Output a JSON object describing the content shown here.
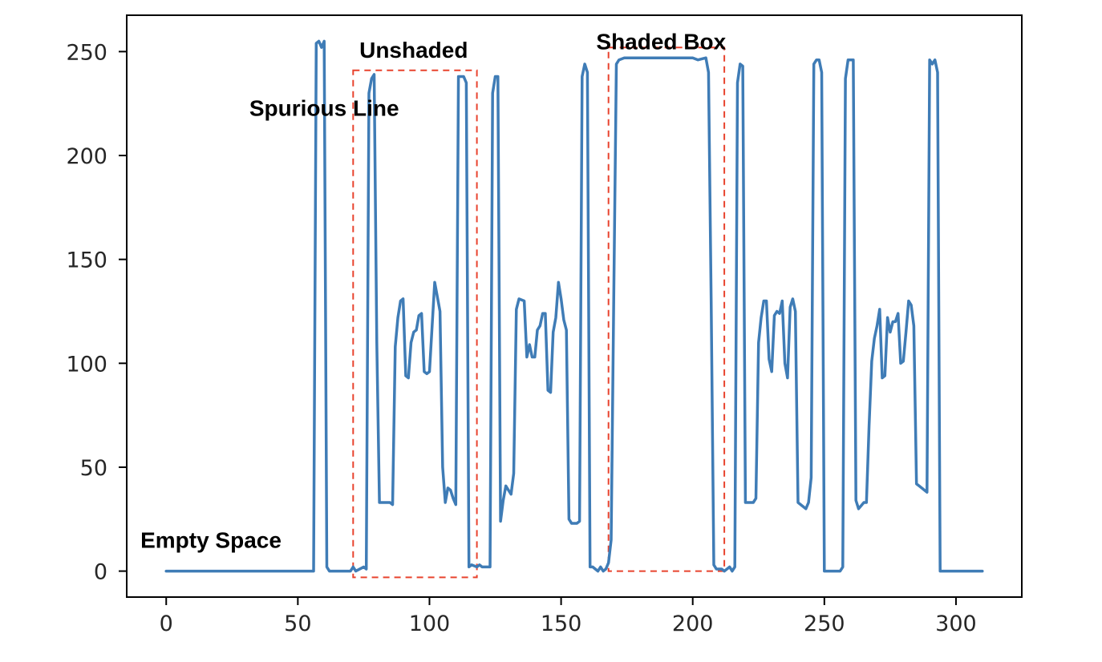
{
  "chart_data": {
    "type": "line",
    "title": "",
    "xlabel": "",
    "ylabel": "",
    "xlim": [
      -15,
      325
    ],
    "ylim": [
      -12.5,
      267.5
    ],
    "grid": false,
    "legend": "none",
    "x_ticks": [
      0,
      50,
      100,
      150,
      200,
      250,
      300
    ],
    "y_ticks": [
      0,
      50,
      100,
      150,
      200,
      250
    ],
    "line_color": "#3F7CB6",
    "box_color": "#E8432E",
    "series": [
      {
        "points": [
          [
            0,
            0
          ],
          [
            54,
            0
          ],
          [
            56,
            0
          ],
          [
            57,
            254
          ],
          [
            58,
            255
          ],
          [
            59,
            252
          ],
          [
            60,
            255
          ],
          [
            61,
            2
          ],
          [
            62,
            0
          ],
          [
            70,
            0
          ],
          [
            71,
            2
          ],
          [
            72,
            0
          ],
          [
            75,
            2
          ],
          [
            76,
            1
          ],
          [
            77,
            230
          ],
          [
            78,
            237
          ],
          [
            79,
            239
          ],
          [
            80,
            110
          ],
          [
            81,
            33
          ],
          [
            85,
            33
          ],
          [
            86,
            32
          ],
          [
            87,
            108
          ],
          [
            88,
            122
          ],
          [
            89,
            130
          ],
          [
            90,
            131
          ],
          [
            91,
            94
          ],
          [
            92,
            93
          ],
          [
            93,
            110
          ],
          [
            94,
            115
          ],
          [
            95,
            116
          ],
          [
            96,
            123
          ],
          [
            97,
            124
          ],
          [
            98,
            96
          ],
          [
            99,
            95
          ],
          [
            100,
            96
          ],
          [
            101,
            118
          ],
          [
            102,
            139
          ],
          [
            103,
            132
          ],
          [
            104,
            125
          ],
          [
            105,
            50
          ],
          [
            106,
            33
          ],
          [
            107,
            40
          ],
          [
            108,
            39
          ],
          [
            109,
            35
          ],
          [
            110,
            32
          ],
          [
            111,
            238
          ],
          [
            113,
            238
          ],
          [
            114,
            235
          ],
          [
            115,
            2
          ],
          [
            116,
            3
          ],
          [
            118,
            2
          ],
          [
            119,
            3
          ],
          [
            120,
            2
          ],
          [
            123,
            2
          ],
          [
            124,
            230
          ],
          [
            125,
            238
          ],
          [
            126,
            238
          ],
          [
            127,
            24
          ],
          [
            128,
            34
          ],
          [
            129,
            41
          ],
          [
            130,
            39
          ],
          [
            131,
            37
          ],
          [
            132,
            47
          ],
          [
            133,
            126
          ],
          [
            134,
            131
          ],
          [
            136,
            130
          ],
          [
            137,
            103
          ],
          [
            138,
            109
          ],
          [
            139,
            103
          ],
          [
            140,
            103
          ],
          [
            141,
            116
          ],
          [
            142,
            118
          ],
          [
            143,
            124
          ],
          [
            144,
            124
          ],
          [
            145,
            87
          ],
          [
            146,
            86
          ],
          [
            147,
            115
          ],
          [
            148,
            122
          ],
          [
            149,
            139
          ],
          [
            150,
            131
          ],
          [
            151,
            121
          ],
          [
            152,
            116
          ],
          [
            153,
            25
          ],
          [
            154,
            23
          ],
          [
            156,
            23
          ],
          [
            157,
            24
          ],
          [
            158,
            238
          ],
          [
            159,
            244
          ],
          [
            160,
            240
          ],
          [
            161,
            2
          ],
          [
            162,
            2
          ],
          [
            164,
            0
          ],
          [
            165,
            2
          ],
          [
            166,
            0
          ],
          [
            167,
            1
          ],
          [
            168,
            4
          ],
          [
            169,
            15
          ],
          [
            170,
            130
          ],
          [
            171,
            244
          ],
          [
            172,
            246
          ],
          [
            174,
            247
          ],
          [
            200,
            247
          ],
          [
            202,
            246
          ],
          [
            205,
            247
          ],
          [
            206,
            240
          ],
          [
            207,
            130
          ],
          [
            208,
            3
          ],
          [
            209,
            1
          ],
          [
            210,
            1
          ],
          [
            211,
            1
          ],
          [
            212,
            0
          ],
          [
            213,
            1
          ],
          [
            214,
            2
          ],
          [
            215,
            0
          ],
          [
            216,
            2
          ],
          [
            217,
            235
          ],
          [
            218,
            244
          ],
          [
            219,
            243
          ],
          [
            220,
            33
          ],
          [
            223,
            33
          ],
          [
            224,
            35
          ],
          [
            225,
            110
          ],
          [
            226,
            122
          ],
          [
            227,
            130
          ],
          [
            228,
            130
          ],
          [
            229,
            102
          ],
          [
            230,
            96
          ],
          [
            231,
            123
          ],
          [
            232,
            125
          ],
          [
            233,
            124
          ],
          [
            234,
            130
          ],
          [
            235,
            100
          ],
          [
            236,
            93
          ],
          [
            237,
            127
          ],
          [
            238,
            131
          ],
          [
            239,
            125
          ],
          [
            240,
            33
          ],
          [
            242,
            31
          ],
          [
            243,
            30
          ],
          [
            244,
            33
          ],
          [
            245,
            45
          ],
          [
            246,
            244
          ],
          [
            247,
            246
          ],
          [
            248,
            246
          ],
          [
            249,
            240
          ],
          [
            250,
            0
          ],
          [
            256,
            0
          ],
          [
            257,
            2
          ],
          [
            258,
            237
          ],
          [
            259,
            246
          ],
          [
            261,
            246
          ],
          [
            262,
            34
          ],
          [
            263,
            30
          ],
          [
            265,
            33
          ],
          [
            266,
            33
          ],
          [
            267,
            70
          ],
          [
            268,
            101
          ],
          [
            269,
            112
          ],
          [
            270,
            118
          ],
          [
            271,
            126
          ],
          [
            272,
            93
          ],
          [
            273,
            94
          ],
          [
            274,
            122
          ],
          [
            275,
            115
          ],
          [
            276,
            120
          ],
          [
            277,
            120
          ],
          [
            278,
            124
          ],
          [
            279,
            100
          ],
          [
            280,
            101
          ],
          [
            281,
            115
          ],
          [
            282,
            130
          ],
          [
            283,
            128
          ],
          [
            284,
            118
          ],
          [
            285,
            42
          ],
          [
            286,
            41
          ],
          [
            289,
            38
          ],
          [
            290,
            246
          ],
          [
            291,
            244
          ],
          [
            292,
            246
          ],
          [
            293,
            240
          ],
          [
            294,
            0
          ],
          [
            310,
            0
          ]
        ]
      }
    ],
    "annotations": [
      {
        "text": "Spurious Line",
        "x": 60,
        "y": 222
      },
      {
        "text": "Unshaded",
        "x": 94,
        "y": 250
      },
      {
        "text": "Shaded Box",
        "x": 188,
        "y": 254
      },
      {
        "text": "Empty Space",
        "x": 17,
        "y": 14
      }
    ],
    "boxes": [
      {
        "label": "Unshaded",
        "x0": 71,
        "x1": 118,
        "y0": -3,
        "y1": 241
      },
      {
        "label": "Shaded Box",
        "x0": 168,
        "x1": 212,
        "y0": 0,
        "y1": 252
      }
    ]
  }
}
